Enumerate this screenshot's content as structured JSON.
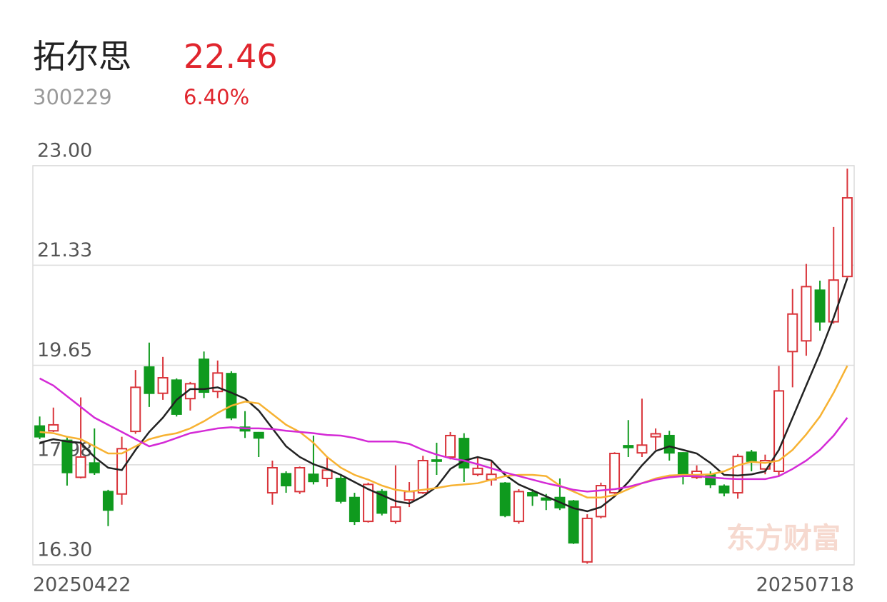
{
  "header": {
    "name": "拓尔思",
    "price": "22.46",
    "code": "300229",
    "change": "6.40%"
  },
  "chart_data": {
    "type": "candlestick",
    "watermark": "东方财富",
    "categories": [
      "20250422",
      null,
      null,
      null,
      null,
      null,
      null,
      null,
      null,
      null,
      null,
      null,
      null,
      null,
      null,
      null,
      null,
      null,
      null,
      null,
      null,
      null,
      null,
      null,
      null,
      null,
      null,
      null,
      null,
      null,
      null,
      null,
      null,
      null,
      null,
      null,
      null,
      null,
      null,
      null,
      null,
      null,
      null,
      null,
      null,
      null,
      null,
      null,
      null,
      null,
      null,
      null,
      null,
      null,
      null,
      null,
      null,
      null,
      null,
      "20250718"
    ],
    "open": [
      18.63,
      18.55,
      18.39,
      17.77,
      18.01,
      17.53,
      17.49,
      18.54,
      19.62,
      19.18,
      19.4,
      19.09,
      19.75,
      19.21,
      19.51,
      18.61,
      18.52,
      17.51,
      17.83,
      17.53,
      17.82,
      17.75,
      17.75,
      17.43,
      17.03,
      17.53,
      17.03,
      17.39,
      17.51,
      18.06,
      18.11,
      18.42,
      17.82,
      17.73,
      17.67,
      17.03,
      17.51,
      17.42,
      17.43,
      17.37,
      16.35,
      17.11,
      17.51,
      18.3,
      18.18,
      18.45,
      18.47,
      18.18,
      17.77,
      17.81,
      17.62,
      17.51,
      18.19,
      17.91,
      17.87,
      19.88,
      20.06,
      20.91,
      20.38,
      21.14
    ],
    "high": [
      18.79,
      18.94,
      18.45,
      19.11,
      18.59,
      17.56,
      18.45,
      19.57,
      20.03,
      19.79,
      19.43,
      19.37,
      19.88,
      19.73,
      19.55,
      18.88,
      18.53,
      18.05,
      17.87,
      17.95,
      18.47,
      18.11,
      17.81,
      17.51,
      17.68,
      17.57,
      17.97,
      17.69,
      18.13,
      18.35,
      18.53,
      18.51,
      18.11,
      18.05,
      17.69,
      17.57,
      17.57,
      17.49,
      17.75,
      17.39,
      17.15,
      17.68,
      18.19,
      18.73,
      19.09,
      18.59,
      18.55,
      18.19,
      17.97,
      17.87,
      17.65,
      18.16,
      18.23,
      18.15,
      19.64,
      20.93,
      21.35,
      21.07,
      21.97,
      22.95
    ],
    "low": [
      18.41,
      18.53,
      17.63,
      17.75,
      17.81,
      16.95,
      17.31,
      18.5,
      18.95,
      19.07,
      18.79,
      18.89,
      19.1,
      19.1,
      18.73,
      18.43,
      18.11,
      17.31,
      17.51,
      17.49,
      17.65,
      17.61,
      17.33,
      16.97,
      17.01,
      17.13,
      16.99,
      17.27,
      17.49,
      17.81,
      18.07,
      17.69,
      17.79,
      17.63,
      17.1,
      16.99,
      17.29,
      17.22,
      17.22,
      16.65,
      16.32,
      17.08,
      17.49,
      18.11,
      18.11,
      18.23,
      18.05,
      17.65,
      17.74,
      17.59,
      17.45,
      17.41,
      17.87,
      17.82,
      17.79,
      19.28,
      19.81,
      20.23,
      20.35,
      21.11
    ],
    "close": [
      18.45,
      18.65,
      17.85,
      18.11,
      17.85,
      17.22,
      18.25,
      19.28,
      19.18,
      19.44,
      18.83,
      19.34,
      19.2,
      19.52,
      18.77,
      18.55,
      18.43,
      17.93,
      17.63,
      17.93,
      17.7,
      17.89,
      17.37,
      17.03,
      17.65,
      17.17,
      17.27,
      17.53,
      18.05,
      18.04,
      18.47,
      17.93,
      17.92,
      17.82,
      17.13,
      17.53,
      17.46,
      17.39,
      17.26,
      16.67,
      17.08,
      17.63,
      18.17,
      18.27,
      18.31,
      18.5,
      18.18,
      17.82,
      17.87,
      17.65,
      17.51,
      18.12,
      18.04,
      18.05,
      19.22,
      20.51,
      20.97,
      20.38,
      21.08,
      22.46
    ],
    "up_color": "#d9343a",
    "down_color": "#0f9a1e",
    "lines": [
      {
        "color": "#222222",
        "values": [
          18.35,
          18.41,
          18.37,
          18.35,
          18.11,
          17.93,
          17.89,
          18.23,
          18.53,
          18.77,
          19.07,
          19.25,
          19.25,
          19.28,
          19.19,
          19.09,
          18.89,
          18.59,
          18.29,
          18.11,
          17.99,
          17.91,
          17.81,
          17.69,
          17.57,
          17.47,
          17.37,
          17.33,
          17.45,
          17.61,
          17.91,
          18.05,
          18.11,
          18.05,
          17.81,
          17.65,
          17.55,
          17.45,
          17.35,
          17.25,
          17.2,
          17.27,
          17.45,
          17.69,
          17.97,
          18.21,
          18.29,
          18.23,
          18.17,
          18.01,
          17.81,
          17.8,
          17.82,
          17.87,
          18.23,
          18.77,
          19.31,
          19.85,
          20.45,
          21.11
        ]
      },
      {
        "color": "#f7b232",
        "values": [
          18.53,
          18.51,
          18.45,
          18.41,
          18.29,
          18.17,
          18.17,
          18.29,
          18.41,
          18.47,
          18.51,
          18.59,
          18.71,
          18.85,
          18.97,
          19.04,
          19.01,
          18.83,
          18.65,
          18.53,
          18.35,
          18.11,
          17.93,
          17.81,
          17.73,
          17.63,
          17.56,
          17.53,
          17.56,
          17.59,
          17.63,
          17.65,
          17.67,
          17.73,
          17.79,
          17.81,
          17.81,
          17.79,
          17.63,
          17.53,
          17.43,
          17.43,
          17.47,
          17.57,
          17.67,
          17.75,
          17.8,
          17.81,
          17.81,
          17.82,
          17.87,
          17.97,
          18.03,
          18.01,
          18.05,
          18.23,
          18.49,
          18.79,
          19.19,
          19.64
        ]
      },
      {
        "color": "#d42ad6",
        "values": [
          19.43,
          19.31,
          19.13,
          18.95,
          18.77,
          18.65,
          18.53,
          18.41,
          18.29,
          18.35,
          18.43,
          18.51,
          18.55,
          18.59,
          18.61,
          18.59,
          18.59,
          18.58,
          18.55,
          18.53,
          18.51,
          18.48,
          18.47,
          18.43,
          18.37,
          18.37,
          18.37,
          18.33,
          18.23,
          18.15,
          18.09,
          18.05,
          17.99,
          17.92,
          17.85,
          17.79,
          17.73,
          17.67,
          17.62,
          17.56,
          17.53,
          17.55,
          17.57,
          17.61,
          17.67,
          17.73,
          17.77,
          17.79,
          17.79,
          17.77,
          17.75,
          17.74,
          17.74,
          17.74,
          17.79,
          17.91,
          18.05,
          18.23,
          18.47,
          18.77
        ]
      }
    ],
    "ylim": [
      16.3,
      23
    ],
    "yticks": [
      {
        "value": 23,
        "label": "23.00"
      },
      21.33,
      19.65,
      17.98,
      {
        "value": 16.3,
        "label": "16.30"
      }
    ],
    "grid": true
  }
}
